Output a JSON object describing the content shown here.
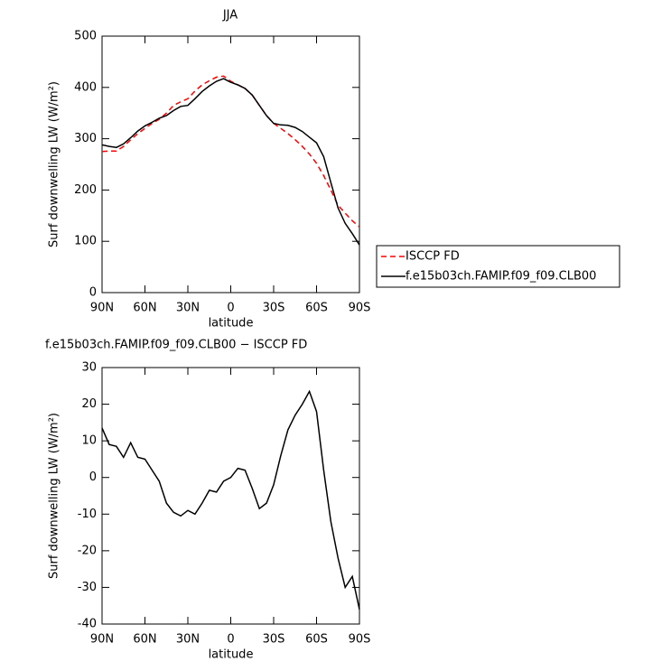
{
  "chart_data": [
    {
      "type": "line",
      "title": "JJA",
      "xlabel": "latitude",
      "ylabel": "Surf downwelling LW (W/m²)",
      "x": [
        90,
        85,
        80,
        75,
        70,
        65,
        60,
        55,
        50,
        45,
        40,
        35,
        30,
        25,
        20,
        15,
        10,
        5,
        0,
        -5,
        -10,
        -15,
        -20,
        -25,
        -30,
        -35,
        -40,
        -45,
        -50,
        -55,
        -60,
        -65,
        -70,
        -75,
        -80,
        -85,
        -90
      ],
      "series": [
        {
          "name": "ISCCP FD",
          "color": "#ff0000",
          "dashed": true,
          "values": [
            275,
            276,
            276,
            285,
            298,
            310,
            320,
            330,
            338,
            350,
            365,
            372,
            378,
            393,
            405,
            413,
            420,
            422,
            412,
            405,
            398,
            385,
            365,
            345,
            330,
            320,
            310,
            298,
            285,
            270,
            252,
            228,
            200,
            170,
            155,
            140,
            128
          ]
        },
        {
          "name": "f.e15b03ch.FAMIP.f09_f09.CLB00",
          "color": "#000000",
          "dashed": false,
          "values": [
            288,
            285,
            283,
            290,
            302,
            315,
            325,
            332,
            340,
            345,
            355,
            363,
            365,
            378,
            392,
            403,
            412,
            417,
            410,
            405,
            398,
            385,
            365,
            345,
            330,
            327,
            326,
            322,
            314,
            303,
            292,
            265,
            215,
            165,
            135,
            115,
            93
          ]
        }
      ],
      "xlim": [
        90,
        -90
      ],
      "xticks": [
        {
          "value": 90,
          "label": "90N"
        },
        {
          "value": 60,
          "label": "60N"
        },
        {
          "value": 30,
          "label": "30N"
        },
        0,
        {
          "value": -30,
          "label": "30S"
        },
        {
          "value": -60,
          "label": "60S"
        },
        {
          "value": -90,
          "label": "90S"
        }
      ],
      "ylim": [
        0,
        500
      ],
      "yticks": [
        0,
        100,
        200,
        300,
        400,
        500
      ],
      "legend": "outside right"
    },
    {
      "type": "line",
      "title": "f.e15b03ch.FAMIP.f09_f09.CLB00 − ISCCP FD",
      "xlabel": "latitude",
      "ylabel": "Surf downwelling LW (W/m²)",
      "x": [
        90,
        85,
        80,
        75,
        70,
        65,
        60,
        55,
        50,
        45,
        40,
        35,
        30,
        25,
        20,
        15,
        10,
        5,
        0,
        -5,
        -10,
        -15,
        -20,
        -25,
        -30,
        -35,
        -40,
        -45,
        -50,
        -55,
        -60,
        -65,
        -70,
        -75,
        -80,
        -85,
        -90
      ],
      "series": [
        {
          "color": "#000000",
          "dashed": false,
          "values": [
            13.5,
            9,
            8.5,
            5.5,
            9.5,
            5.5,
            5,
            2,
            -1,
            -7,
            -9.5,
            -10.5,
            -9,
            -10,
            -7,
            -3.5,
            -4,
            -1,
            0,
            2.5,
            2,
            -3,
            -8.5,
            -7,
            -2,
            6,
            13,
            17,
            20,
            23.5,
            18,
            2,
            -12,
            -22,
            -30,
            -27,
            -36
          ]
        }
      ],
      "xlim": [
        90,
        -90
      ],
      "xticks": [
        {
          "value": 90,
          "label": "90N"
        },
        {
          "value": 60,
          "label": "60N"
        },
        {
          "value": 30,
          "label": "30N"
        },
        0,
        {
          "value": -30,
          "label": "30S"
        },
        {
          "value": -60,
          "label": "60S"
        },
        {
          "value": -90,
          "label": "90S"
        }
      ],
      "ylim": [
        -40,
        30
      ],
      "yticks": [
        -40,
        -30,
        -20,
        -10,
        0,
        10,
        20,
        30
      ]
    }
  ]
}
